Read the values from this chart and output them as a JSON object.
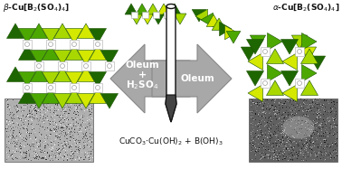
{
  "bg_color": "#ffffff",
  "arrow_color": "#a8a8a8",
  "arrow_edge_color": "#888888",
  "text_color": "#111111",
  "green_dark": "#1e6600",
  "green_mid": "#4ca800",
  "green_light": "#a8d800",
  "green_yellow": "#d4e800",
  "flask_outline": "#111111",
  "flask_tip": "#444444",
  "figsize": [
    3.78,
    1.87
  ],
  "dpi": 100
}
